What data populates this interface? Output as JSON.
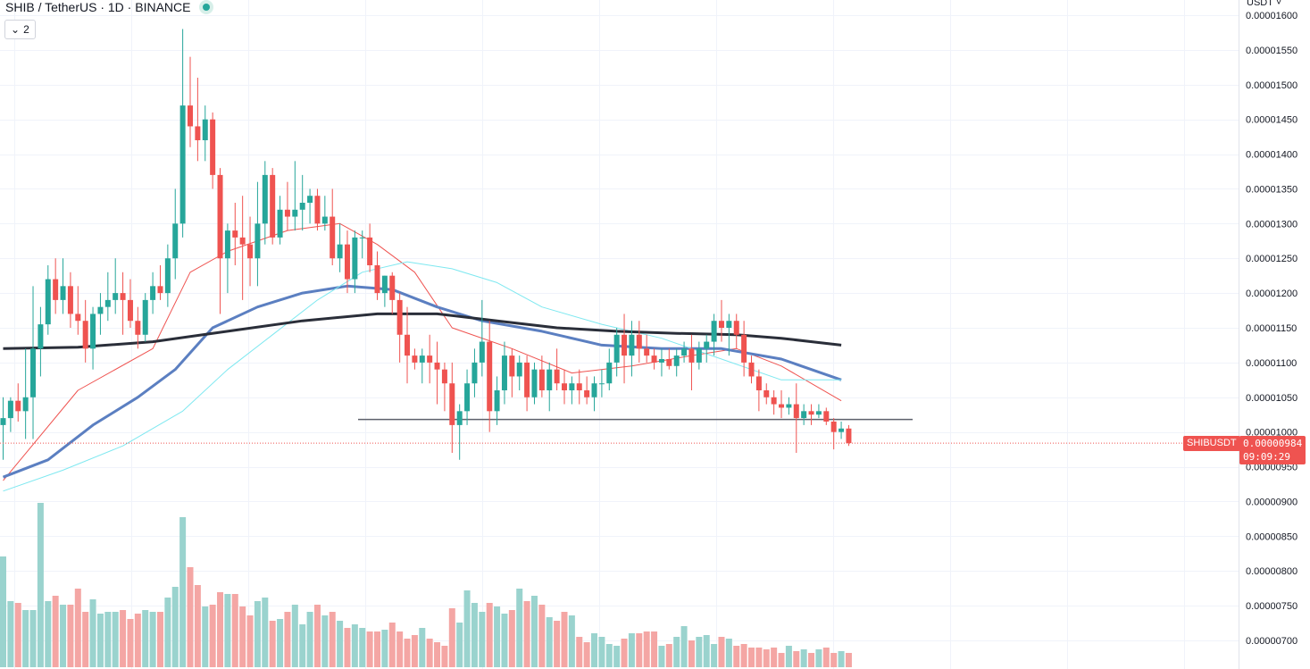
{
  "header": {
    "symbol_line": "SHIB / TetherUS · 1D · BINANCE",
    "collapse_count": "2",
    "currency": "USDT"
  },
  "colors": {
    "up": "#26a69a",
    "down": "#ef5350",
    "up_volume": "#9ad3ce",
    "down_volume": "#f4a6a4",
    "ma_short": "#ef5350",
    "ma_medium": "#5b7fc1",
    "ma_cyan": "#7ee8f0",
    "ma_long": "#2a2e39",
    "grid": "#f0f3fa",
    "support_line": "#5d606b"
  },
  "price_tag": {
    "label": "SHIBUSDT",
    "price": "0.00000984",
    "countdown": "09:09:29"
  },
  "chart_data": {
    "type": "candlestick",
    "title": "SHIB / TetherUS · 1D · BINANCE",
    "y_axis_ticks": [
      "0.00001600",
      "0.00001550",
      "0.00001500",
      "0.00001450",
      "0.00001400",
      "0.00001350",
      "0.00001300",
      "0.00001250",
      "0.00001200",
      "0.00001150",
      "0.00001100",
      "0.00001050",
      "0.00001000",
      "0.00000950",
      "0.00000900",
      "0.00000850",
      "0.00000800",
      "0.00000750",
      "0.00000700"
    ],
    "ylim": [
      6.65e-06,
      1.62e-05
    ],
    "grid": true,
    "support_level": 1.018e-05,
    "last_price": 9.84e-06,
    "candles": [
      [
        10.1,
        10.5,
        9.6,
        10.2
      ],
      [
        10.2,
        10.5,
        10.0,
        10.45
      ],
      [
        10.45,
        10.7,
        10.15,
        10.3
      ],
      [
        10.3,
        11.2,
        9.9,
        10.5
      ],
      [
        10.5,
        12.1,
        9.9,
        11.2
      ],
      [
        11.2,
        11.8,
        10.8,
        11.55
      ],
      [
        11.55,
        12.4,
        11.4,
        12.2
      ],
      [
        12.2,
        12.5,
        11.7,
        11.9
      ],
      [
        11.9,
        12.5,
        11.7,
        12.1
      ],
      [
        12.1,
        12.3,
        11.5,
        11.7
      ],
      [
        11.7,
        12.1,
        11.4,
        11.6
      ],
      [
        11.6,
        11.9,
        11.0,
        11.2
      ],
      [
        11.2,
        11.8,
        10.9,
        11.7
      ],
      [
        11.7,
        12.0,
        11.4,
        11.8
      ],
      [
        11.8,
        12.3,
        11.6,
        11.9
      ],
      [
        11.9,
        12.5,
        11.7,
        12.0
      ],
      [
        12.0,
        12.3,
        11.4,
        11.9
      ],
      [
        11.9,
        12.2,
        11.5,
        11.6
      ],
      [
        11.6,
        11.8,
        11.2,
        11.4
      ],
      [
        11.4,
        12.0,
        11.3,
        11.9
      ],
      [
        11.9,
        12.3,
        11.7,
        12.1
      ],
      [
        12.1,
        12.4,
        11.9,
        12.0
      ],
      [
        12.0,
        12.7,
        11.8,
        12.5
      ],
      [
        12.5,
        13.5,
        12.2,
        13.0
      ],
      [
        13.0,
        15.8,
        12.8,
        14.7
      ],
      [
        14.7,
        15.4,
        14.1,
        14.4
      ],
      [
        14.4,
        15.1,
        13.9,
        14.2
      ],
      [
        14.2,
        14.7,
        13.9,
        14.5
      ],
      [
        14.5,
        14.6,
        13.5,
        13.7
      ],
      [
        13.7,
        13.8,
        11.7,
        12.5
      ],
      [
        12.5,
        13.0,
        12.0,
        12.9
      ],
      [
        12.9,
        13.3,
        12.4,
        12.8
      ],
      [
        12.8,
        13.4,
        11.9,
        12.7
      ],
      [
        12.7,
        13.1,
        12.1,
        12.5
      ],
      [
        12.5,
        13.6,
        12.1,
        13.0
      ],
      [
        13.0,
        13.9,
        12.7,
        13.7
      ],
      [
        13.7,
        13.8,
        12.7,
        12.8
      ],
      [
        12.8,
        13.4,
        12.7,
        13.2
      ],
      [
        13.2,
        13.6,
        12.9,
        13.1
      ],
      [
        13.1,
        13.9,
        12.9,
        13.2
      ],
      [
        13.2,
        13.7,
        12.9,
        13.3
      ],
      [
        13.3,
        13.5,
        13.0,
        13.4
      ],
      [
        13.4,
        13.5,
        12.9,
        13.0
      ],
      [
        13.0,
        13.4,
        12.9,
        13.1
      ],
      [
        13.1,
        13.5,
        12.4,
        12.5
      ],
      [
        12.5,
        13.0,
        12.3,
        12.7
      ],
      [
        12.7,
        12.9,
        12.0,
        12.2
      ],
      [
        12.2,
        12.9,
        12.0,
        12.8
      ],
      [
        12.8,
        12.9,
        12.5,
        12.8
      ],
      [
        12.8,
        13.0,
        12.3,
        12.4
      ],
      [
        12.4,
        12.6,
        11.9,
        12.0
      ],
      [
        12.0,
        12.25,
        11.8,
        12.25
      ],
      [
        12.25,
        12.3,
        11.7,
        11.9
      ],
      [
        11.9,
        12.0,
        11.0,
        11.4
      ],
      [
        11.4,
        11.8,
        10.7,
        11.1
      ],
      [
        11.1,
        11.2,
        10.9,
        11.0
      ],
      [
        11.0,
        11.2,
        10.7,
        11.1
      ],
      [
        11.1,
        11.4,
        10.7,
        11.0
      ],
      [
        11.0,
        11.3,
        10.4,
        10.9
      ],
      [
        10.9,
        11.0,
        10.3,
        10.7
      ],
      [
        10.7,
        11.0,
        9.7,
        10.1
      ],
      [
        10.1,
        10.4,
        9.6,
        10.3
      ],
      [
        10.3,
        10.9,
        10.1,
        10.7
      ],
      [
        10.7,
        11.2,
        10.5,
        11.0
      ],
      [
        11.0,
        11.9,
        10.8,
        11.3
      ],
      [
        11.3,
        11.6,
        10.0,
        10.3
      ],
      [
        10.3,
        10.8,
        10.1,
        10.6
      ],
      [
        10.6,
        11.3,
        10.4,
        11.1
      ],
      [
        11.1,
        11.2,
        10.5,
        10.8
      ],
      [
        10.8,
        11.1,
        10.6,
        11.0
      ],
      [
        11.0,
        11.1,
        10.3,
        10.5
      ],
      [
        10.5,
        11.0,
        10.4,
        10.9
      ],
      [
        10.9,
        11.1,
        10.5,
        10.6
      ],
      [
        10.6,
        11.0,
        10.3,
        10.9
      ],
      [
        10.9,
        11.2,
        10.6,
        10.7
      ],
      [
        10.7,
        10.9,
        10.4,
        10.6
      ],
      [
        10.6,
        10.8,
        10.4,
        10.7
      ],
      [
        10.7,
        10.9,
        10.4,
        10.6
      ],
      [
        10.6,
        10.8,
        10.4,
        10.5
      ],
      [
        10.5,
        10.8,
        10.3,
        10.7
      ],
      [
        10.7,
        10.9,
        10.5,
        10.7
      ],
      [
        10.7,
        11.2,
        10.6,
        11.0
      ],
      [
        11.0,
        11.5,
        10.8,
        11.4
      ],
      [
        11.4,
        11.7,
        10.7,
        11.1
      ],
      [
        11.1,
        11.6,
        10.8,
        11.4
      ],
      [
        11.4,
        11.6,
        11.0,
        11.2
      ],
      [
        11.2,
        11.4,
        11.0,
        11.1
      ],
      [
        11.1,
        11.2,
        10.9,
        11.0
      ],
      [
        11.0,
        11.2,
        10.8,
        11.05
      ],
      [
        11.05,
        11.2,
        10.9,
        10.95
      ],
      [
        10.95,
        11.2,
        10.8,
        11.1
      ],
      [
        11.1,
        11.3,
        11.0,
        11.2
      ],
      [
        11.2,
        11.4,
        10.6,
        11.0
      ],
      [
        11.0,
        11.3,
        10.9,
        11.2
      ],
      [
        11.2,
        11.4,
        11.0,
        11.3
      ],
      [
        11.3,
        11.7,
        11.1,
        11.6
      ],
      [
        11.6,
        11.9,
        11.3,
        11.5
      ],
      [
        11.5,
        11.7,
        11.1,
        11.6
      ],
      [
        11.6,
        11.7,
        11.2,
        11.4
      ],
      [
        11.4,
        11.6,
        10.8,
        11.0
      ],
      [
        11.0,
        11.1,
        10.7,
        10.8
      ],
      [
        10.8,
        10.9,
        10.3,
        10.6
      ],
      [
        10.6,
        10.7,
        10.4,
        10.5
      ],
      [
        10.5,
        10.6,
        10.25,
        10.4
      ],
      [
        10.4,
        10.6,
        10.2,
        10.35
      ],
      [
        10.35,
        10.5,
        10.25,
        10.4
      ],
      [
        10.4,
        10.7,
        9.7,
        10.2
      ],
      [
        10.2,
        10.4,
        10.1,
        10.3
      ],
      [
        10.3,
        10.4,
        10.1,
        10.25
      ],
      [
        10.25,
        10.4,
        10.2,
        10.3
      ],
      [
        10.3,
        10.35,
        10.1,
        10.15
      ],
      [
        10.15,
        10.2,
        9.75,
        10.0
      ],
      [
        10.0,
        10.15,
        9.9,
        10.05
      ],
      [
        10.05,
        10.1,
        9.8,
        9.84
      ]
    ],
    "volumes": [
      62,
      37,
      36,
      32,
      32,
      92,
      37,
      40,
      35,
      35,
      44,
      31,
      38,
      30,
      31,
      31,
      32,
      27,
      30,
      32,
      31,
      31,
      39,
      45,
      84,
      56,
      46,
      34,
      35,
      42,
      41,
      41,
      34,
      29,
      37,
      39,
      26,
      27,
      31,
      35,
      24,
      31,
      35,
      29,
      31,
      26,
      22,
      24,
      22,
      20,
      20,
      21,
      25,
      20,
      16,
      18,
      22,
      16,
      14,
      12,
      33,
      25,
      43,
      36,
      31,
      36,
      34,
      30,
      32,
      44,
      37,
      40,
      35,
      28,
      26,
      31,
      29,
      17,
      14,
      19,
      17,
      13,
      12,
      16,
      19,
      19,
      20,
      20,
      12,
      13,
      17,
      23,
      15,
      17,
      18,
      13,
      17,
      16,
      12,
      13,
      11,
      11,
      10,
      11,
      8,
      12,
      9,
      10,
      8,
      10,
      11,
      8,
      9,
      8
    ],
    "moving_averages": [
      {
        "name": "MA short",
        "color_key": "ma_short",
        "points": [
          [
            0,
            9.3
          ],
          [
            10,
            10.6
          ],
          [
            20,
            11.2
          ],
          [
            25,
            12.3
          ],
          [
            30,
            12.6
          ],
          [
            38,
            12.9
          ],
          [
            45,
            13.0
          ],
          [
            50,
            12.7
          ],
          [
            55,
            12.3
          ],
          [
            60,
            11.5
          ],
          [
            68,
            11.2
          ],
          [
            76,
            10.85
          ],
          [
            84,
            10.95
          ],
          [
            92,
            11.1
          ],
          [
            98,
            11.2
          ],
          [
            104,
            10.95
          ],
          [
            112,
            10.45
          ]
        ]
      },
      {
        "name": "MA medium",
        "color_key": "ma_medium",
        "points": [
          [
            0,
            9.35
          ],
          [
            6,
            9.6
          ],
          [
            12,
            10.1
          ],
          [
            18,
            10.5
          ],
          [
            23,
            10.9
          ],
          [
            28,
            11.5
          ],
          [
            34,
            11.8
          ],
          [
            40,
            12.0
          ],
          [
            46,
            12.1
          ],
          [
            52,
            12.05
          ],
          [
            58,
            11.8
          ],
          [
            64,
            11.6
          ],
          [
            72,
            11.45
          ],
          [
            80,
            11.25
          ],
          [
            88,
            11.2
          ],
          [
            96,
            11.2
          ],
          [
            104,
            11.05
          ],
          [
            112,
            10.75
          ]
        ]
      },
      {
        "name": "MA cyan",
        "color_key": "ma_cyan",
        "points": [
          [
            0,
            9.15
          ],
          [
            8,
            9.45
          ],
          [
            16,
            9.8
          ],
          [
            24,
            10.3
          ],
          [
            30,
            10.9
          ],
          [
            36,
            11.4
          ],
          [
            42,
            11.9
          ],
          [
            48,
            12.3
          ],
          [
            54,
            12.45
          ],
          [
            60,
            12.35
          ],
          [
            66,
            12.15
          ],
          [
            72,
            11.8
          ],
          [
            80,
            11.55
          ],
          [
            88,
            11.35
          ],
          [
            96,
            11.05
          ],
          [
            104,
            10.75
          ],
          [
            112,
            10.75
          ]
        ]
      },
      {
        "name": "MA long",
        "color_key": "ma_long",
        "points": [
          [
            0,
            11.2
          ],
          [
            10,
            11.22
          ],
          [
            20,
            11.3
          ],
          [
            30,
            11.45
          ],
          [
            40,
            11.6
          ],
          [
            50,
            11.7
          ],
          [
            58,
            11.7
          ],
          [
            66,
            11.6
          ],
          [
            74,
            11.5
          ],
          [
            82,
            11.45
          ],
          [
            90,
            11.42
          ],
          [
            98,
            11.4
          ],
          [
            104,
            11.35
          ],
          [
            112,
            11.25
          ]
        ]
      }
    ]
  }
}
